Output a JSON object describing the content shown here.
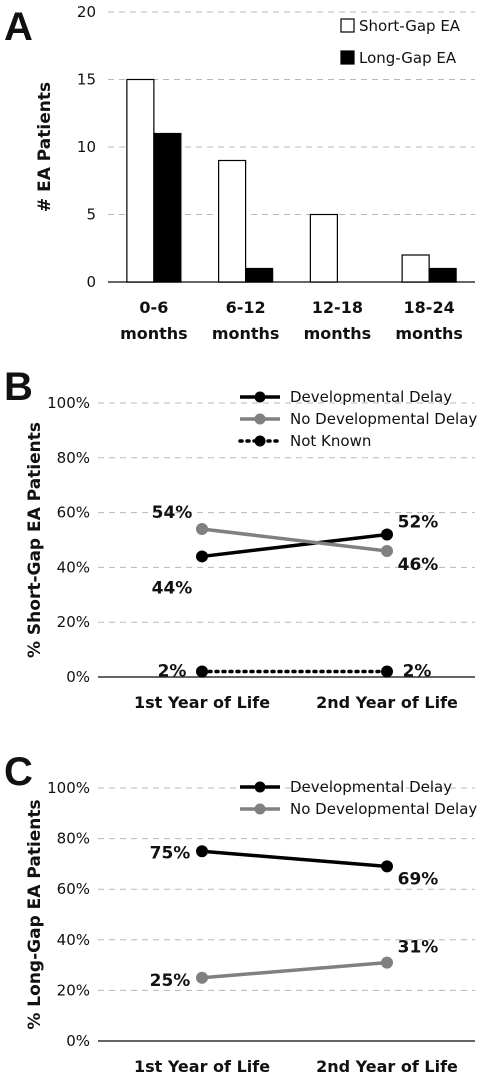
{
  "chart_data": [
    {
      "panel": "A",
      "type": "bar",
      "categories": [
        "0-6 months",
        "6-12 months",
        "12-18 months",
        "18-24 months"
      ],
      "series": [
        {
          "name": "Short-Gap EA",
          "values": [
            15,
            9,
            5,
            2
          ],
          "color": "#ffffff"
        },
        {
          "name": "Long-Gap EA",
          "values": [
            11,
            1,
            0,
            1
          ],
          "color": "#000000"
        }
      ],
      "ylabel": "# EA Patients",
      "ylim": [
        0,
        20
      ],
      "yticks": [
        "0",
        "5",
        "10",
        "15",
        "20"
      ],
      "legend": "top-right",
      "grid": true
    },
    {
      "panel": "B",
      "type": "line",
      "categories": [
        "1st Year of Life",
        "2nd Year of Life"
      ],
      "series": [
        {
          "name": "Developmental Delay",
          "values": [
            44,
            52
          ],
          "labels": [
            "44%",
            "52%"
          ],
          "color": "#000000",
          "dash": "solid"
        },
        {
          "name": "No Developmental Delay",
          "values": [
            54,
            46
          ],
          "labels": [
            "54%",
            "46%"
          ],
          "color": "#808080",
          "dash": "solid"
        },
        {
          "name": "Not Known",
          "values": [
            2,
            2
          ],
          "labels": [
            "2%",
            "2%"
          ],
          "color": "#000000",
          "dash": "dotted"
        }
      ],
      "ylabel": "% Short-Gap EA Patients",
      "ylim": [
        0,
        100
      ],
      "yticks": [
        "0%",
        "20%",
        "40%",
        "60%",
        "80%",
        "100%"
      ],
      "legend": "top-right",
      "grid": true
    },
    {
      "panel": "C",
      "type": "line",
      "categories": [
        "1st Year of Life",
        "2nd Year of Life"
      ],
      "series": [
        {
          "name": "Developmental Delay",
          "values": [
            75,
            69
          ],
          "labels": [
            "75%",
            "69%"
          ],
          "color": "#000000",
          "dash": "solid"
        },
        {
          "name": "No Developmental Delay",
          "values": [
            25,
            31
          ],
          "labels": [
            "25%",
            "31%"
          ],
          "color": "#808080",
          "dash": "solid"
        }
      ],
      "ylabel": "% Long-Gap EA Patients",
      "ylim": [
        0,
        100
      ],
      "yticks": [
        "0%",
        "20%",
        "40%",
        "60%",
        "80%",
        "100%"
      ],
      "legend": "top-right",
      "grid": true
    }
  ]
}
